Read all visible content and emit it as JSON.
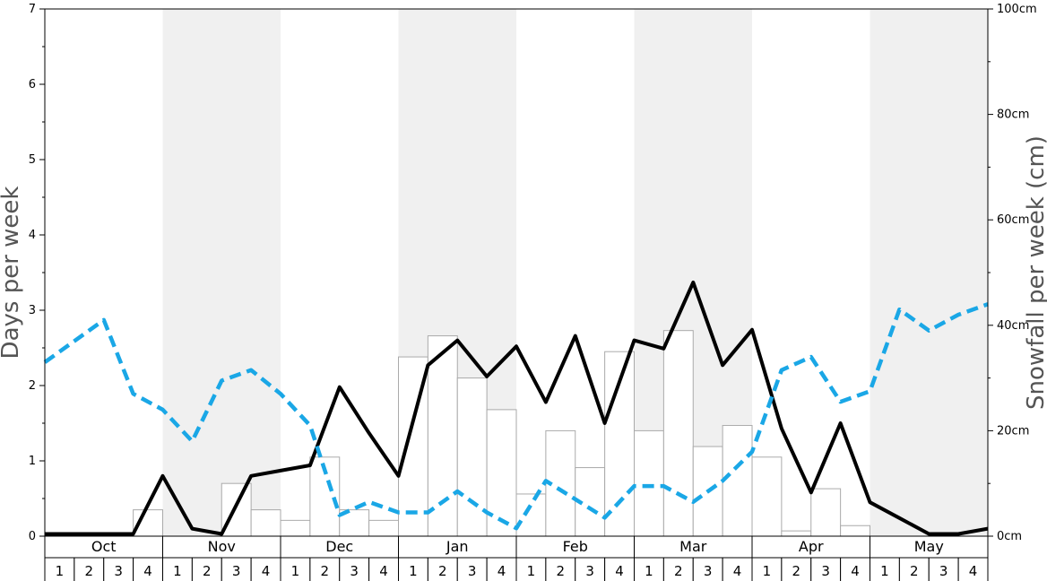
{
  "chart_data": {
    "type": "bar+line",
    "months": [
      "Oct",
      "Nov",
      "Dec",
      "Jan",
      "Feb",
      "Mar",
      "Apr",
      "May"
    ],
    "week_labels": [
      "1",
      "2",
      "3",
      "4"
    ],
    "left_axis": {
      "label": "Days per week",
      "range": [
        0,
        7
      ],
      "ticks": [
        "0",
        "1",
        "2",
        "3",
        "4",
        "5",
        "6",
        "7"
      ]
    },
    "right_axis": {
      "label": "Snowfall per week (cm)",
      "range": [
        0,
        100
      ],
      "ticks": [
        "0cm",
        "20cm",
        "40cm",
        "60cm",
        "80cm",
        "100cm"
      ]
    },
    "shaded_months": [
      "Nov",
      "Jan",
      "Mar",
      "May"
    ],
    "series": [
      {
        "kind": "bar",
        "axis": "right",
        "color": "#ffffff",
        "edge_color": "#aaaaaa",
        "values": [
          0,
          0,
          0,
          5,
          0,
          0,
          10,
          5,
          3,
          15,
          5,
          3,
          34,
          38,
          30,
          24,
          8,
          20,
          13,
          35,
          20,
          39,
          17,
          21,
          15,
          1,
          9,
          2,
          0,
          0,
          0,
          0
        ]
      },
      {
        "kind": "line",
        "axis": "left",
        "color": "#000000",
        "style": "solid",
        "values": [
          0.03,
          0.03,
          0.03,
          0.03,
          0.8,
          0.1,
          0.03,
          0.8,
          0.87,
          0.94,
          1.98,
          1.37,
          0.8,
          2.27,
          2.6,
          2.12,
          2.52,
          1.78,
          2.66,
          1.5,
          2.6,
          2.49,
          3.37,
          2.27,
          2.74,
          1.43,
          0.58,
          1.5,
          0.45,
          0.24,
          0.03,
          0.03,
          0.1
        ]
      },
      {
        "kind": "line",
        "axis": "right",
        "color": "#1aa7e6",
        "style": "dashed",
        "values": [
          33,
          37,
          41,
          27,
          24,
          18,
          29.5,
          31.5,
          27,
          21,
          4,
          6.5,
          4.5,
          4.5,
          8.5,
          4.5,
          1.5,
          10.5,
          7,
          3.5,
          9.5,
          9.5,
          6.5,
          10.5,
          16,
          31.5,
          34,
          25.5,
          27.5,
          43,
          39,
          42,
          44
        ]
      }
    ]
  }
}
